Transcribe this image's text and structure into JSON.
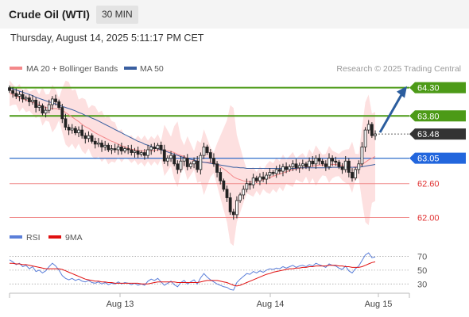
{
  "header": {
    "title": "Crude Oil (WTI)",
    "timeframe": "30 MIN",
    "datetime": "Thursday, August 14, 2025 5:11:17 PM CET"
  },
  "colors": {
    "resistance": "#4c9a17",
    "support": "#2266dd",
    "pivot": "#1a5fc4",
    "weak_level": "#f08a8a",
    "last_price_bg": "#333333",
    "arrow": "#2b5d9e",
    "ma20": "#f4888a",
    "ma50": "#3a5fa0",
    "bands_fill": "#fde0e0",
    "rsi": "#5b7fd9",
    "rsi_ma": "#e01010",
    "candle": "#222222"
  },
  "chart_data": [
    {
      "type": "candlestick",
      "legend": [
        {
          "name": "MA 20 + Bollinger Bands",
          "color": "#f4888a"
        },
        {
          "name": "MA 50",
          "color": "#3a5fa0"
        }
      ],
      "credit": "Research © 2025 Trading Central",
      "x_ticks": [
        "Aug 13",
        "Aug 14",
        "Aug 15"
      ],
      "ylim": [
        61.95,
        64.45
      ],
      "levels": [
        {
          "value": 64.3,
          "label": "64.30",
          "kind": "resistance"
        },
        {
          "value": 63.8,
          "label": "63.80",
          "kind": "resistance"
        },
        {
          "value": 63.48,
          "label": "63.48",
          "kind": "last"
        },
        {
          "value": 63.05,
          "label": "63.05",
          "kind": "pivot"
        },
        {
          "value": 62.6,
          "label": "62.60",
          "kind": "support"
        },
        {
          "value": 62.0,
          "label": "62.00",
          "kind": "support"
        }
      ],
      "close": [
        64.25,
        64.2,
        64.15,
        64.18,
        64.1,
        64.12,
        64.05,
        64.08,
        63.95,
        63.98,
        63.85,
        63.9,
        64.0,
        64.1,
        64.05,
        63.95,
        63.75,
        63.6,
        63.55,
        63.58,
        63.5,
        63.55,
        63.45,
        63.4,
        63.45,
        63.35,
        63.3,
        63.32,
        63.25,
        63.28,
        63.2,
        63.22,
        63.2,
        63.25,
        63.18,
        63.22,
        63.2,
        63.15,
        63.18,
        63.12,
        63.15,
        63.1,
        63.2,
        63.25,
        63.22,
        63.28,
        63.2,
        63.0,
        63.05,
        63.1,
        62.95,
        62.85,
        63.0,
        63.05,
        62.9,
        62.95,
        63.0,
        62.85,
        63.1,
        63.25,
        63.15,
        63.05,
        62.95,
        62.8,
        62.65,
        62.5,
        62.35,
        62.1,
        62.05,
        62.3,
        62.4,
        62.5,
        62.6,
        62.58,
        62.7,
        62.65,
        62.72,
        62.68,
        62.75,
        62.8,
        62.78,
        62.85,
        62.82,
        62.9,
        62.85,
        62.9,
        62.95,
        62.88,
        62.92,
        62.95,
        62.9,
        63.0,
        62.95,
        63.05,
        63.0,
        62.95,
        62.9,
        63.05,
        63.0,
        62.98,
        62.9,
        62.85,
        63.0,
        62.8,
        62.7,
        62.85,
        62.95,
        63.25,
        63.55,
        63.65,
        63.45,
        63.48
      ],
      "ma20": [
        64.2,
        64.18,
        64.15,
        64.12,
        64.1,
        64.08,
        64.06,
        64.04,
        64.02,
        64.0,
        63.97,
        63.95,
        63.94,
        63.93,
        63.93,
        63.92,
        63.9,
        63.86,
        63.82,
        63.78,
        63.74,
        63.7,
        63.65,
        63.61,
        63.58,
        63.54,
        63.5,
        63.47,
        63.44,
        63.41,
        63.38,
        63.35,
        63.33,
        63.3,
        63.27,
        63.25,
        63.23,
        63.21,
        63.2,
        63.19,
        63.18,
        63.18,
        63.18,
        63.18,
        63.19,
        63.2,
        63.2,
        63.19,
        63.18,
        63.17,
        63.15,
        63.12,
        63.1,
        63.08,
        63.05,
        63.03,
        63.01,
        62.99,
        62.98,
        62.98,
        62.98,
        62.98,
        62.97,
        62.94,
        62.9,
        62.86,
        62.82,
        62.77,
        62.72,
        62.69,
        62.67,
        62.65,
        62.64,
        62.63,
        62.63,
        62.64,
        62.65,
        62.67,
        62.69,
        62.71,
        62.73,
        62.75,
        62.77,
        62.79,
        62.81,
        62.83,
        62.85,
        62.86,
        62.87,
        62.88,
        62.89,
        62.9,
        62.91,
        62.92,
        62.93,
        62.93,
        62.93,
        62.94,
        62.94,
        62.94,
        62.93,
        62.92,
        62.91,
        62.9,
        62.89,
        62.9,
        62.91,
        62.94,
        62.98,
        63.02,
        63.05,
        63.08
      ],
      "ma50": [
        64.3,
        64.28,
        64.26,
        64.24,
        64.22,
        64.2,
        64.18,
        64.16,
        64.13,
        64.11,
        64.09,
        64.07,
        64.05,
        64.03,
        64.01,
        63.99,
        63.97,
        63.95,
        63.93,
        63.91,
        63.89,
        63.86,
        63.84,
        63.81,
        63.79,
        63.76,
        63.74,
        63.71,
        63.68,
        63.65,
        63.62,
        63.59,
        63.56,
        63.53,
        63.5,
        63.47,
        63.44,
        63.41,
        63.38,
        63.35,
        63.33,
        63.3,
        63.28,
        63.26,
        63.24,
        63.22,
        63.2,
        63.18,
        63.16,
        63.14,
        63.12,
        63.1,
        63.08,
        63.06,
        63.05,
        63.03,
        63.02,
        63.0,
        62.99,
        62.98,
        62.97,
        62.96,
        62.95,
        62.94,
        62.93,
        62.92,
        62.91,
        62.9,
        62.89,
        62.89,
        62.88,
        62.88,
        62.87,
        62.87,
        62.87,
        62.87,
        62.87,
        62.87,
        62.87,
        62.87,
        62.87,
        62.87,
        62.87,
        62.87,
        62.87,
        62.87,
        62.87,
        62.87,
        62.88,
        62.88,
        62.88,
        62.88,
        62.88,
        62.88,
        62.88,
        62.88,
        62.88,
        62.88,
        62.89,
        62.89,
        62.89,
        62.89,
        62.89,
        62.89,
        62.89,
        62.89,
        62.89,
        62.9,
        62.91,
        62.92,
        62.93,
        62.94
      ]
    },
    {
      "type": "line",
      "legend": [
        {
          "name": "RSI",
          "color": "#5b7fd9"
        },
        {
          "name": "9MA",
          "color": "#e01010"
        }
      ],
      "ylim": [
        20,
        82
      ],
      "y_ticks": [
        70,
        50,
        30
      ],
      "rsi": [
        65,
        62,
        58,
        60,
        55,
        57,
        52,
        55,
        48,
        50,
        46,
        49,
        55,
        60,
        56,
        50,
        42,
        38,
        36,
        38,
        35,
        37,
        34,
        33,
        35,
        32,
        31,
        33,
        30,
        32,
        29,
        31,
        30,
        33,
        30,
        32,
        31,
        29,
        31,
        28,
        30,
        28,
        34,
        37,
        35,
        38,
        33,
        28,
        31,
        34,
        29,
        26,
        32,
        35,
        30,
        33,
        36,
        30,
        39,
        45,
        40,
        36,
        33,
        30,
        28,
        26,
        25,
        22,
        21,
        32,
        37,
        41,
        45,
        44,
        48,
        46,
        49,
        47,
        50,
        52,
        51,
        53,
        52,
        55,
        53,
        55,
        57,
        54,
        56,
        57,
        55,
        58,
        56,
        60,
        58,
        56,
        54,
        59,
        57,
        56,
        53,
        51,
        56,
        49,
        46,
        52,
        56,
        64,
        72,
        75,
        68,
        69
      ],
      "rsi_ma": [
        60,
        60,
        59,
        59,
        58,
        58,
        57,
        56,
        55,
        54,
        53,
        52,
        52,
        52,
        52,
        52,
        51,
        49,
        47,
        45,
        43,
        41,
        39,
        37,
        36,
        35,
        34,
        34,
        33,
        33,
        32,
        32,
        31,
        31,
        31,
        31,
        31,
        31,
        31,
        31,
        30,
        30,
        30,
        31,
        32,
        33,
        33,
        33,
        33,
        33,
        33,
        32,
        32,
        32,
        32,
        32,
        32,
        32,
        33,
        34,
        35,
        35,
        35,
        35,
        34,
        33,
        32,
        30,
        28,
        27,
        28,
        30,
        32,
        34,
        36,
        38,
        40,
        42,
        44,
        45,
        47,
        48,
        49,
        50,
        51,
        52,
        52,
        53,
        53,
        54,
        54,
        55,
        55,
        56,
        56,
        56,
        56,
        57,
        57,
        57,
        56,
        56,
        55,
        55,
        54,
        54,
        54,
        55,
        57,
        59,
        61,
        62
      ]
    }
  ]
}
